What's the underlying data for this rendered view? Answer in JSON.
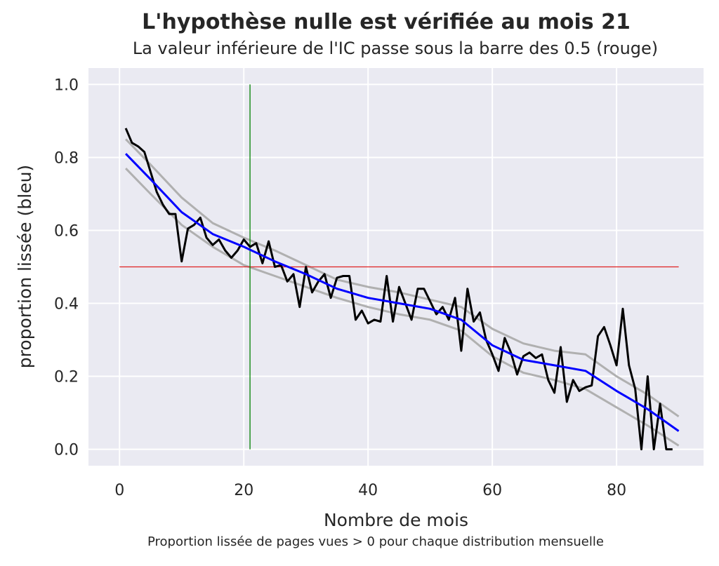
{
  "title": "L'hypothèse nulle est vérifiée au mois 21",
  "subtitle": "La valeur inférieure de l'IC passe sous la barre des 0.5 (rouge)",
  "caption": "Proportion lissée de pages vues > 0 pour chaque distribution mensuelle",
  "chart_data": {
    "type": "line",
    "xlabel": "Nombre de mois",
    "ylabel": "proportion lissée (bleu)",
    "xlim": [
      -5,
      94
    ],
    "ylim": [
      -0.045,
      1.045
    ],
    "xticks": [
      0,
      20,
      40,
      60,
      80
    ],
    "yticks": [
      0.0,
      0.2,
      0.4,
      0.6,
      0.8,
      1.0
    ],
    "xtick_labels": [
      "0",
      "20",
      "40",
      "60",
      "80"
    ],
    "ytick_labels": [
      "0.0",
      "0.2",
      "0.4",
      "0.6",
      "0.8",
      "1.0"
    ],
    "grid": true,
    "colors": {
      "background": "#eaeaf2",
      "grid": "#ffffff",
      "raw": "#000000",
      "smoothed": "#0000ff",
      "ci": "#b0b0b0",
      "threshold": "#e02020",
      "vline": "#008000"
    },
    "series": [
      {
        "role": "raw",
        "x": [
          1,
          2,
          3,
          4,
          5,
          6,
          7,
          8,
          9,
          10,
          11,
          12,
          13,
          14,
          15,
          16,
          17,
          18,
          19,
          20,
          21,
          22,
          23,
          24,
          25,
          26,
          27,
          28,
          29,
          30,
          31,
          32,
          33,
          34,
          35,
          36,
          37,
          38,
          39,
          40,
          41,
          42,
          43,
          44,
          45,
          46,
          47,
          48,
          49,
          50,
          51,
          52,
          53,
          54,
          55,
          56,
          57,
          58,
          59,
          60,
          61,
          62,
          63,
          64,
          65,
          66,
          67,
          68,
          69,
          70,
          71,
          72,
          73,
          74,
          75,
          76,
          77,
          78,
          79,
          80,
          81,
          82,
          83,
          84,
          85,
          86,
          87,
          88,
          89
        ],
        "values": [
          0.88,
          0.84,
          0.83,
          0.815,
          0.76,
          0.705,
          0.67,
          0.645,
          0.645,
          0.515,
          0.605,
          0.615,
          0.635,
          0.58,
          0.56,
          0.575,
          0.545,
          0.525,
          0.545,
          0.575,
          0.555,
          0.565,
          0.51,
          0.57,
          0.5,
          0.505,
          0.46,
          0.48,
          0.39,
          0.5,
          0.43,
          0.46,
          0.48,
          0.415,
          0.47,
          0.475,
          0.475,
          0.355,
          0.38,
          0.345,
          0.355,
          0.35,
          0.475,
          0.35,
          0.445,
          0.4,
          0.355,
          0.44,
          0.44,
          0.405,
          0.37,
          0.39,
          0.355,
          0.415,
          0.27,
          0.44,
          0.35,
          0.375,
          0.3,
          0.26,
          0.215,
          0.305,
          0.265,
          0.205,
          0.255,
          0.265,
          0.25,
          0.26,
          0.19,
          0.155,
          0.28,
          0.13,
          0.19,
          0.16,
          0.17,
          0.175,
          0.31,
          0.335,
          0.285,
          0.23,
          0.385,
          0.23,
          0.165,
          0.0,
          0.2,
          0.0,
          0.125,
          0.0,
          0.0
        ]
      },
      {
        "role": "smoothed",
        "x": [
          1,
          5,
          10,
          15,
          20,
          25,
          30,
          35,
          40,
          45,
          50,
          55,
          60,
          65,
          70,
          75,
          80,
          85,
          90
        ],
        "values": [
          0.81,
          0.74,
          0.65,
          0.59,
          0.555,
          0.515,
          0.48,
          0.44,
          0.415,
          0.4,
          0.385,
          0.355,
          0.285,
          0.245,
          0.23,
          0.215,
          0.16,
          0.11,
          0.05
        ]
      },
      {
        "role": "ci_upper",
        "x": [
          1,
          5,
          10,
          15,
          20,
          25,
          30,
          35,
          40,
          45,
          50,
          55,
          60,
          65,
          70,
          75,
          80,
          85,
          90
        ],
        "values": [
          0.85,
          0.78,
          0.69,
          0.62,
          0.58,
          0.545,
          0.505,
          0.465,
          0.445,
          0.43,
          0.41,
          0.39,
          0.33,
          0.29,
          0.27,
          0.26,
          0.2,
          0.15,
          0.09
        ]
      },
      {
        "role": "ci_lower",
        "x": [
          1,
          5,
          10,
          15,
          20,
          25,
          30,
          35,
          40,
          45,
          50,
          55,
          60,
          65,
          70,
          75,
          80,
          85,
          90
        ],
        "values": [
          0.77,
          0.7,
          0.615,
          0.555,
          0.505,
          0.475,
          0.445,
          0.415,
          0.39,
          0.37,
          0.355,
          0.325,
          0.255,
          0.21,
          0.19,
          0.165,
          0.115,
          0.065,
          0.01
        ]
      }
    ],
    "threshold": {
      "y": 0.5,
      "x": [
        0,
        90
      ]
    },
    "vline": {
      "x": 21,
      "y": [
        0,
        1
      ]
    }
  }
}
